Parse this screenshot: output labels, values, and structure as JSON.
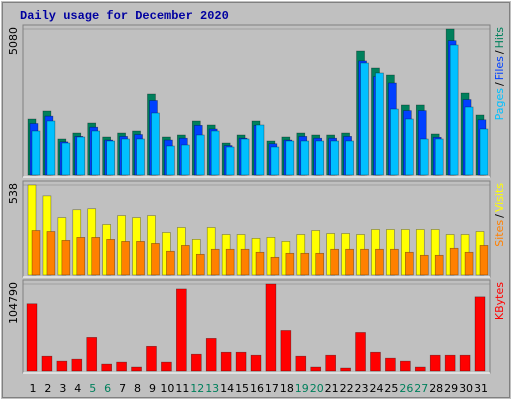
{
  "chart_data": [
    {
      "type": "bar",
      "title": "Daily usage for December 2020",
      "ylim": [
        0,
        5080
      ],
      "yticks": [
        5080
      ],
      "legend_separator": "/",
      "series": [
        {
          "name": "Hits",
          "color": "#00805c",
          "values": [
            1948,
            2227,
            1253,
            1461,
            1809,
            1322,
            1461,
            1531,
            2818,
            1322,
            1392,
            1879,
            1740,
            1113,
            1392,
            1879,
            1183,
            1322,
            1461,
            1392,
            1392,
            1461,
            4314,
            3723,
            3479,
            2436,
            2436,
            1427,
            5080,
            2853,
            2088
          ]
        },
        {
          "name": "Files",
          "color": "#0040ff",
          "values": [
            1792,
            2049,
            1153,
            1344,
            1664,
            1216,
            1344,
            1409,
            2593,
            1216,
            1281,
            1729,
            1601,
            1024,
            1281,
            1729,
            1088,
            1216,
            1344,
            1281,
            1281,
            1344,
            3969,
            3425,
            3201,
            2241,
            2241,
            1313,
            4674,
            2625,
            1921
          ]
        },
        {
          "name": "Pages",
          "color": "#00c0ff",
          "values": [
            1531,
            1879,
            1113,
            1322,
            1531,
            1183,
            1253,
            1253,
            2157,
            1009,
            1044,
            1392,
            1531,
            974,
            1253,
            1740,
            974,
            1183,
            1183,
            1183,
            1183,
            1183,
            3897,
            3549,
            2296,
            1948,
            1253,
            1253,
            4523,
            2366,
            1601
          ]
        }
      ]
    },
    {
      "type": "bar",
      "ylim": [
        0,
        538
      ],
      "yticks": [
        538
      ],
      "legend_separator": "/",
      "series": [
        {
          "name": "Visits",
          "color": "#ffff00",
          "values": [
            538,
            473,
            343,
            390,
            396,
            302,
            355,
            343,
            355,
            254,
            284,
            213,
            284,
            242,
            242,
            219,
            225,
            201,
            242,
            266,
            248,
            248,
            242,
            272,
            272,
            272,
            272,
            272,
            242,
            242,
            260
          ]
        },
        {
          "name": "Sites",
          "color": "#ff8000",
          "values": [
            266,
            260,
            207,
            225,
            225,
            213,
            201,
            201,
            189,
            142,
            177,
            124,
            154,
            154,
            154,
            136,
            106,
            130,
            130,
            130,
            154,
            154,
            154,
            154,
            154,
            136,
            118,
            118,
            160,
            136,
            177
          ]
        }
      ]
    },
    {
      "type": "bar",
      "ylim": [
        0,
        104790
      ],
      "yticks": [
        104790
      ],
      "categories": [
        "1",
        "2",
        "3",
        "4",
        "5",
        "6",
        "7",
        "8",
        "9",
        "10",
        "11",
        "12",
        "13",
        "14",
        "15",
        "16",
        "17",
        "18",
        "19",
        "20",
        "21",
        "22",
        "23",
        "24",
        "25",
        "26",
        "27",
        "28",
        "29",
        "30",
        "31"
      ],
      "category_colors": [
        "#000",
        "#000",
        "#000",
        "#000",
        "#00805c",
        "#00805c",
        "#000",
        "#000",
        "#000",
        "#000",
        "#000",
        "#00805c",
        "#00805c",
        "#000",
        "#000",
        "#000",
        "#000",
        "#000",
        "#00805c",
        "#00805c",
        "#000",
        "#000",
        "#000",
        "#000",
        "#000",
        "#00805c",
        "#00805c",
        "#000",
        "#000",
        "#000",
        "#000"
      ],
      "series": [
        {
          "name": "KBytes",
          "color": "#ff0000",
          "values": [
            80975,
            17862,
            11908,
            14290,
            40487,
            8336,
            10717,
            4763,
            29770,
            10717,
            98836,
            20244,
            39296,
            22625,
            22625,
            19053,
            104790,
            48822,
            17862,
            4763,
            19053,
            3572,
            46441,
            22625,
            15480,
            11908,
            4763,
            19053,
            19053,
            19053,
            89310
          ]
        }
      ]
    }
  ]
}
